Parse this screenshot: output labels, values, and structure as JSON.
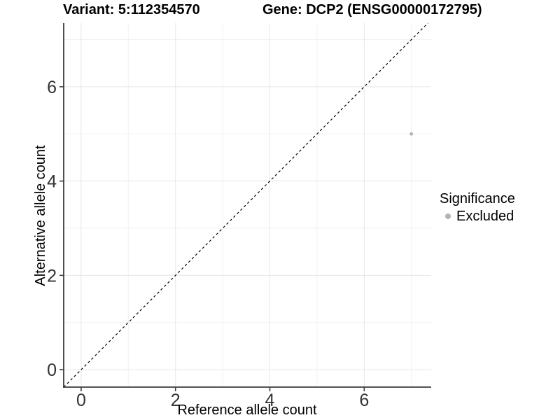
{
  "chart_data": {
    "type": "scatter",
    "titles": {
      "left": "Variant: 5:112354570",
      "right": "Gene: DCP2 (ENSG00000172795)"
    },
    "xlabel": "Reference allele count",
    "ylabel": "Alternative allele count",
    "xlim": [
      -0.37,
      7.42
    ],
    "ylim": [
      -0.37,
      7.35
    ],
    "xticks": [
      0,
      2,
      4,
      6
    ],
    "yticks": [
      0,
      2,
      4,
      6
    ],
    "xminor": [
      1,
      3,
      5,
      7
    ],
    "yminor": [
      1,
      3,
      5,
      7
    ],
    "grid": "major and minor gridlines, white background",
    "series": [
      {
        "name": "Excluded",
        "color": "#b3b3b3",
        "points": [
          {
            "x": 7,
            "y": 5
          }
        ]
      }
    ],
    "reference_line": {
      "kind": "identity y=x",
      "style": "dashed",
      "color": "#000000"
    },
    "legend": {
      "title": "Significance",
      "position": "right",
      "items": [
        {
          "label": "Excluded",
          "color": "#b3b3b3"
        }
      ]
    },
    "colors": {
      "background": "#ffffff",
      "grid_major": "#e6e6e6",
      "grid_minor": "#f1f1f1",
      "axis_line": "#3c3c3c",
      "tick_label": "#333333",
      "title_text": "#000000"
    }
  }
}
